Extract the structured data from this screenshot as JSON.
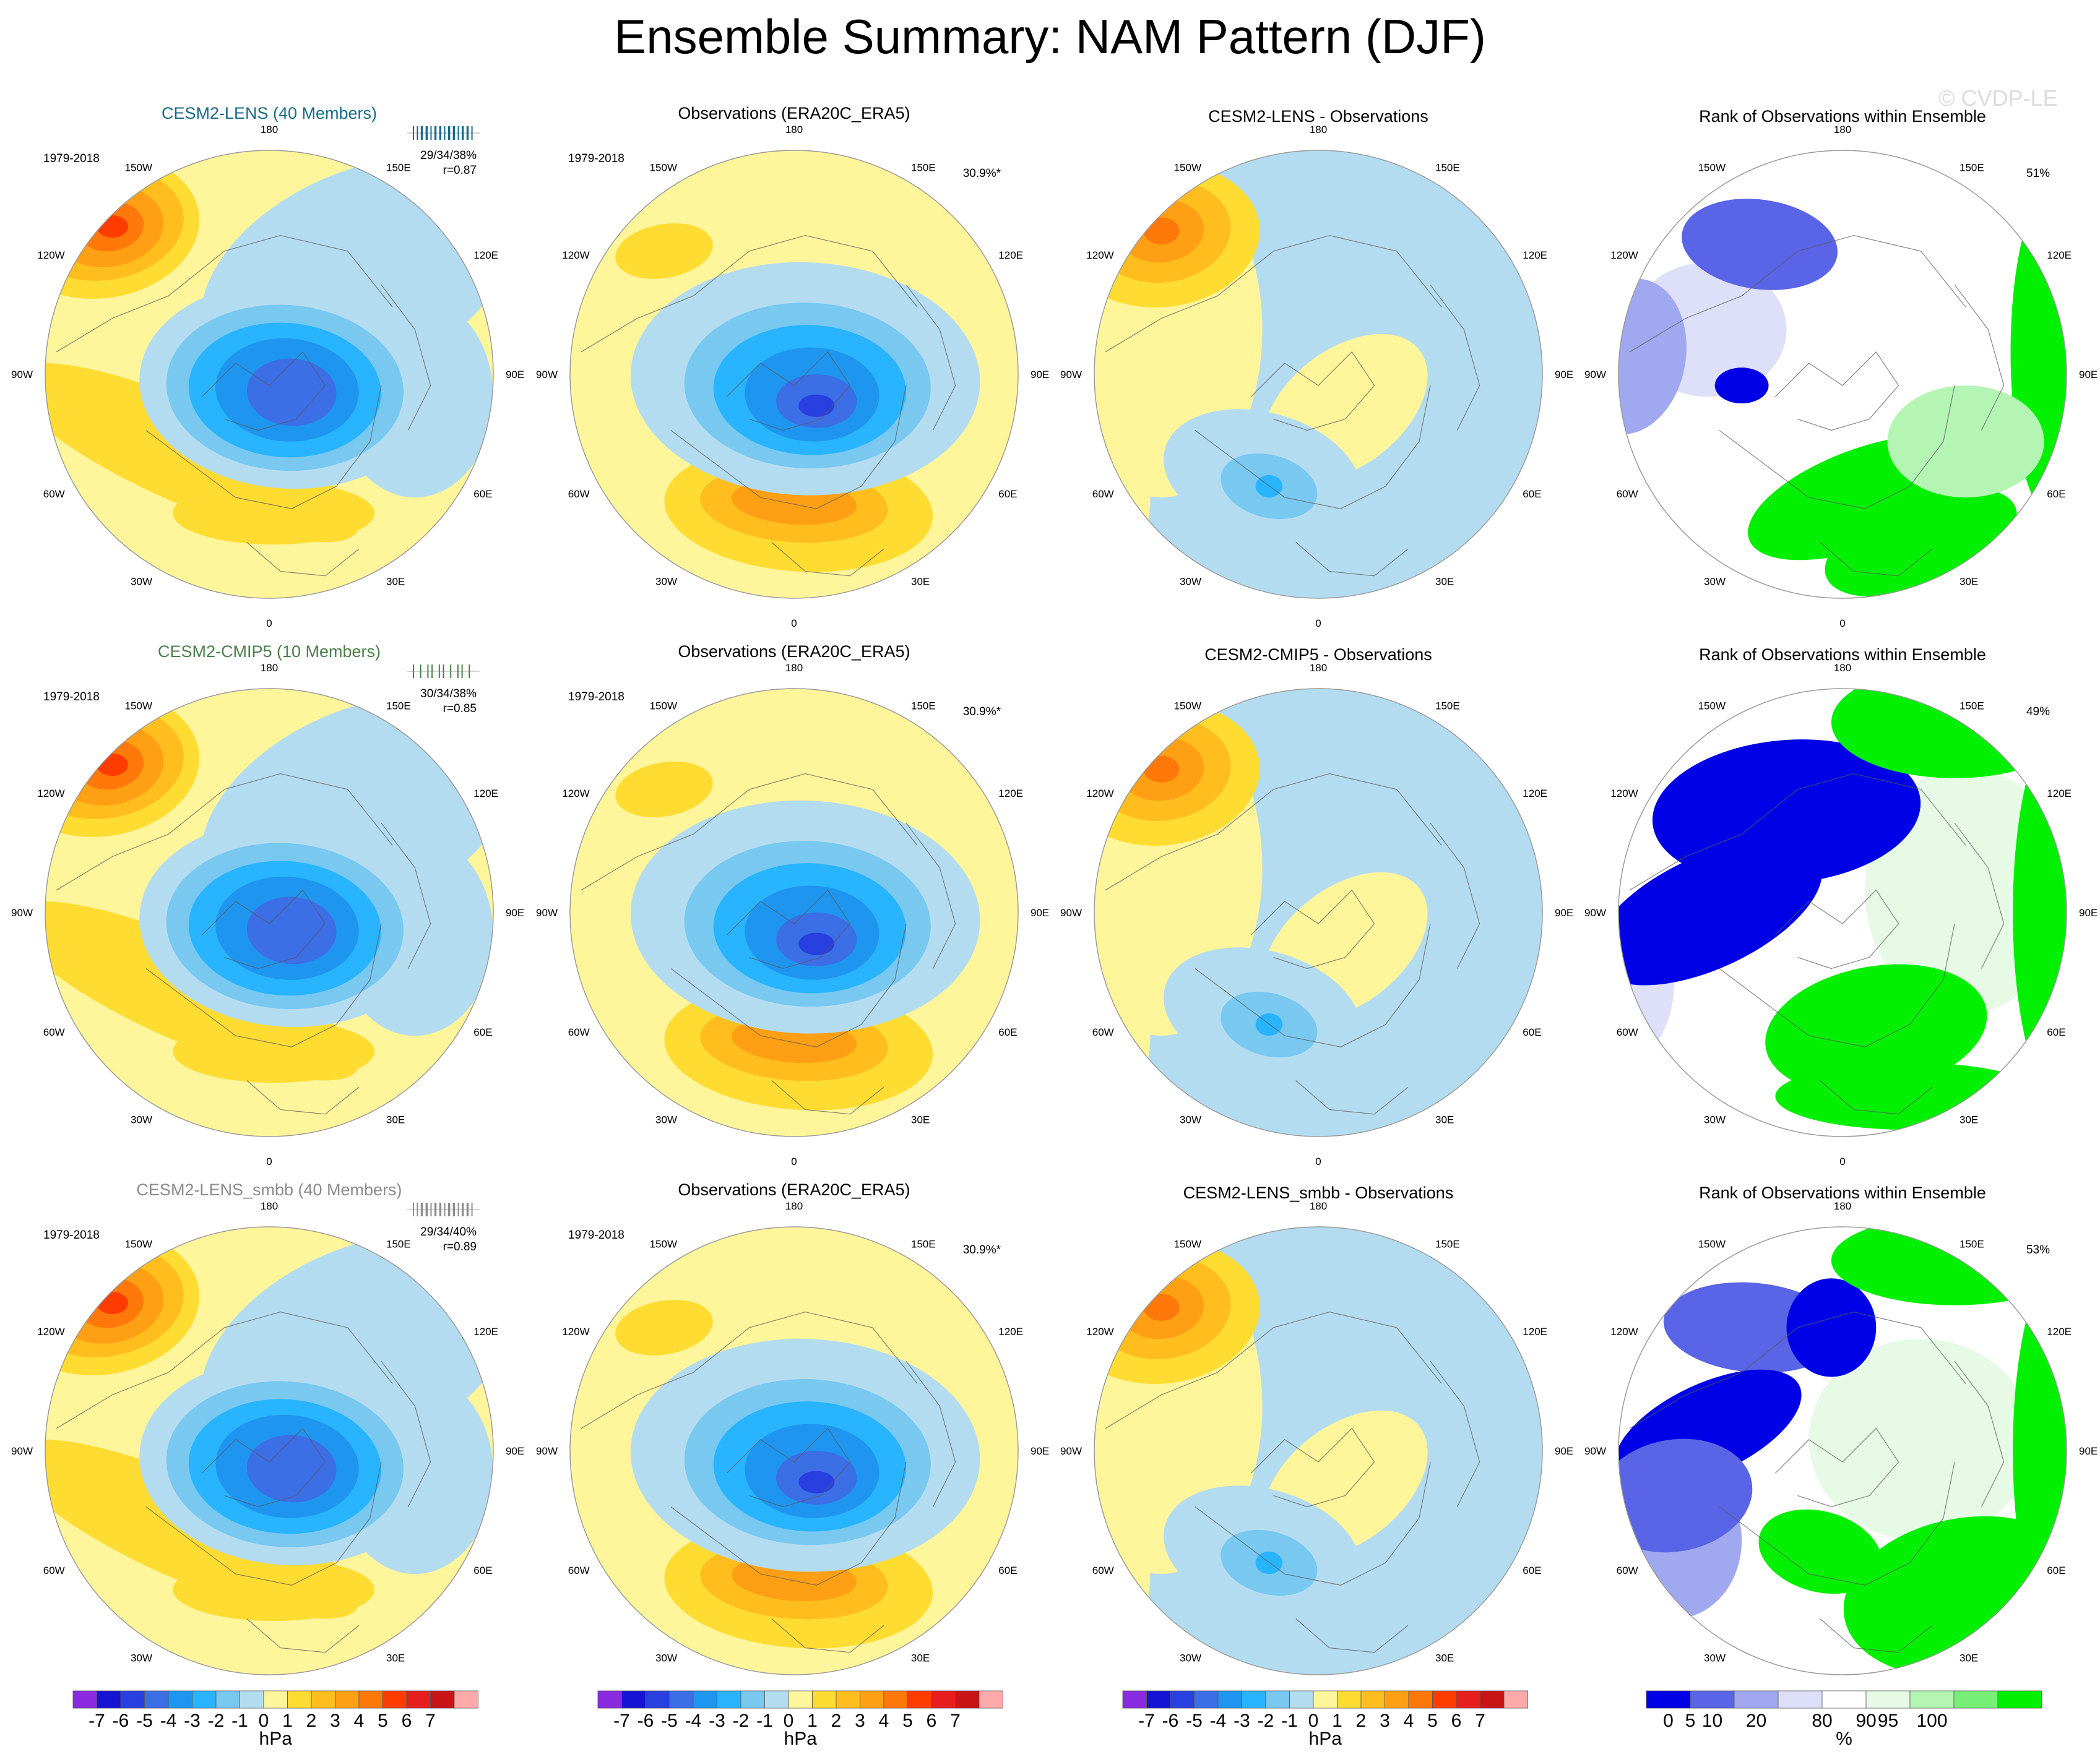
{
  "title": "Ensemble Summary: NAM Pattern (DJF)",
  "watermark": "© CVDP-LE",
  "lon_labels": [
    "180",
    "150E",
    "120E",
    "90E",
    "60E",
    "30E",
    "0",
    "30W",
    "60W",
    "90W",
    "120W",
    "150W"
  ],
  "colors": {
    "hpa_scale": [
      "#8a2be2",
      "#1414d2",
      "#2840e0",
      "#3c6ee6",
      "#1e96f0",
      "#28b4ff",
      "#78c8f0",
      "#b4dcf0",
      "#fff59b",
      "#ffdc32",
      "#ffbe1e",
      "#ffa014",
      "#ff780a",
      "#ff3c00",
      "#e61e1e",
      "#c81414",
      "#ffaaaa"
    ],
    "pct_scale": [
      "#0000e6",
      "#5a64e6",
      "#a0a8f0",
      "#dde0f8",
      "#ffffff",
      "#e6fae6",
      "#b4f5b4",
      "#78f078",
      "#00f000"
    ],
    "model1": "#176b87",
    "model2": "#4a7f48",
    "model3": "#8c8c8c"
  },
  "rows": [
    {
      "model_label": "CESM2-LENS (40 Members)",
      "period": "1979-2018",
      "model_stats": "29/34/38%",
      "model_r": "r=0.87",
      "obs_title": "Observations (ERA20C_ERA5)",
      "obs_period": "1979-2018",
      "obs_pct": "30.9%*",
      "diff_title": "CESM2-LENS - Observations",
      "rank_title": "Rank of Observations within Ensemble",
      "rank_pct": "51%"
    },
    {
      "model_label": "CESM2-CMIP5 (10 Members)",
      "period": "1979-2018",
      "model_stats": "30/34/38%",
      "model_r": "r=0.85",
      "obs_title": "Observations (ERA20C_ERA5)",
      "obs_period": "1979-2018",
      "obs_pct": "30.9%*",
      "diff_title": "CESM2-CMIP5 - Observations",
      "rank_title": "Rank of Observations within Ensemble",
      "rank_pct": "49%"
    },
    {
      "model_label": "CESM2-LENS_smbb (40 Members)",
      "period": "1979-2018",
      "model_stats": "29/34/40%",
      "model_r": "r=0.89",
      "obs_title": "Observations (ERA20C_ERA5)",
      "obs_period": "1979-2018",
      "obs_pct": "30.9%*",
      "diff_title": "CESM2-LENS_smbb - Observations",
      "rank_title": "Rank of Observations within Ensemble",
      "rank_pct": "53%"
    }
  ],
  "chart_data": {
    "type": "heatmap",
    "title": "Ensemble Summary: NAM Pattern (DJF)",
    "projection": "north polar stereographic",
    "colorbar_hpa": {
      "ticks": [
        "-7",
        "-6",
        "-5",
        "-4",
        "-3",
        "-2",
        "-1",
        "0",
        "1",
        "2",
        "3",
        "4",
        "5",
        "6",
        "7"
      ],
      "label": "hPa"
    },
    "colorbar_pct": {
      "ticks": [
        "0",
        "5",
        "10",
        "20",
        "80",
        "90",
        "95",
        "100"
      ],
      "label": "%"
    }
  }
}
